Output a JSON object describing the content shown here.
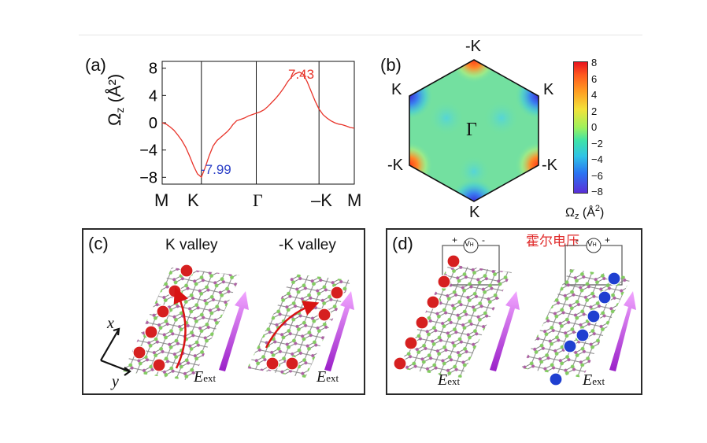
{
  "panel_a": {
    "label": "(a)",
    "ylabel": "Ω",
    "ylabel_sub": "z",
    "ylabel_unit": "(Å²)",
    "yticks": [
      "8",
      "4",
      "0",
      "−4",
      "−8"
    ],
    "xticks": [
      "M",
      "K",
      "Γ",
      "–K",
      "M"
    ],
    "annot_max": "7.43",
    "annot_min": "-7.99",
    "colors": {
      "curve": "#e8342a",
      "annot_max": "#e8342a",
      "annot_min": "#2b3fc7"
    }
  },
  "chart_data": {
    "type": "line",
    "x": [
      0,
      5,
      10,
      15,
      20,
      25,
      30,
      35,
      40,
      45,
      50,
      55,
      60,
      65,
      70,
      75,
      80,
      83,
      87,
      90,
      95,
      100,
      105,
      110,
      115,
      120,
      125,
      130,
      135,
      140,
      145,
      150,
      155,
      160,
      165,
      170,
      175,
      180,
      185,
      190,
      195,
      200,
      202,
      205,
      210,
      215,
      220,
      225,
      230,
      235,
      240,
      245
    ],
    "y": [
      0,
      -0.2,
      -0.6,
      -1.1,
      -1.8,
      -2.6,
      -3.6,
      -4.9,
      -6.3,
      -7.5,
      -7.99,
      -6.5,
      -4.8,
      -3.4,
      -2.6,
      -2.1,
      -1.6,
      -1.3,
      -0.8,
      -0.3,
      0.3,
      0.5,
      0.7,
      1.0,
      1.2,
      1.4,
      1.6,
      1.9,
      2.4,
      3.0,
      3.6,
      4.3,
      5.1,
      6.0,
      6.7,
      7.2,
      7.43,
      7.1,
      6.0,
      4.6,
      3.2,
      2.0,
      1.7,
      1.2,
      0.7,
      0.3,
      0.0,
      -0.2,
      -0.3,
      -0.5,
      -0.7,
      -0.8
    ],
    "ylim": [
      -9,
      9
    ],
    "high_symmetry_points": [
      "M",
      "K",
      "Γ",
      "–K",
      "M"
    ],
    "yticks": [
      8,
      4,
      0,
      -4,
      -8
    ]
  },
  "panel_b": {
    "label": "(b)",
    "center": "Γ",
    "vertices": [
      "-K",
      "K",
      "-K",
      "K",
      "-K",
      "K"
    ],
    "colorbar_ticks": [
      "8",
      "6",
      "4",
      "2",
      "0",
      "−2",
      "−4",
      "−6",
      "−8"
    ],
    "colorbar_label": "Ω",
    "colorbar_sub": "z",
    "colorbar_unit": "(Å",
    "colorbar_sup": "2",
    "colorbar_close": ")"
  },
  "panel_c": {
    "label": "(c)",
    "title_left": "K valley",
    "title_right": "-K valley",
    "axis_x": "x",
    "axis_y": "y",
    "field_left": "E",
    "field_right": "E",
    "field_sub": "ext"
  },
  "panel_d": {
    "label": "(d)",
    "annotation": "霍尔电压",
    "meter_left": "V",
    "meter_right": "V",
    "meter_sub": "H",
    "plus": "+",
    "minus": "-",
    "field_left": "E",
    "field_right": "E",
    "field_sub": "ext"
  }
}
